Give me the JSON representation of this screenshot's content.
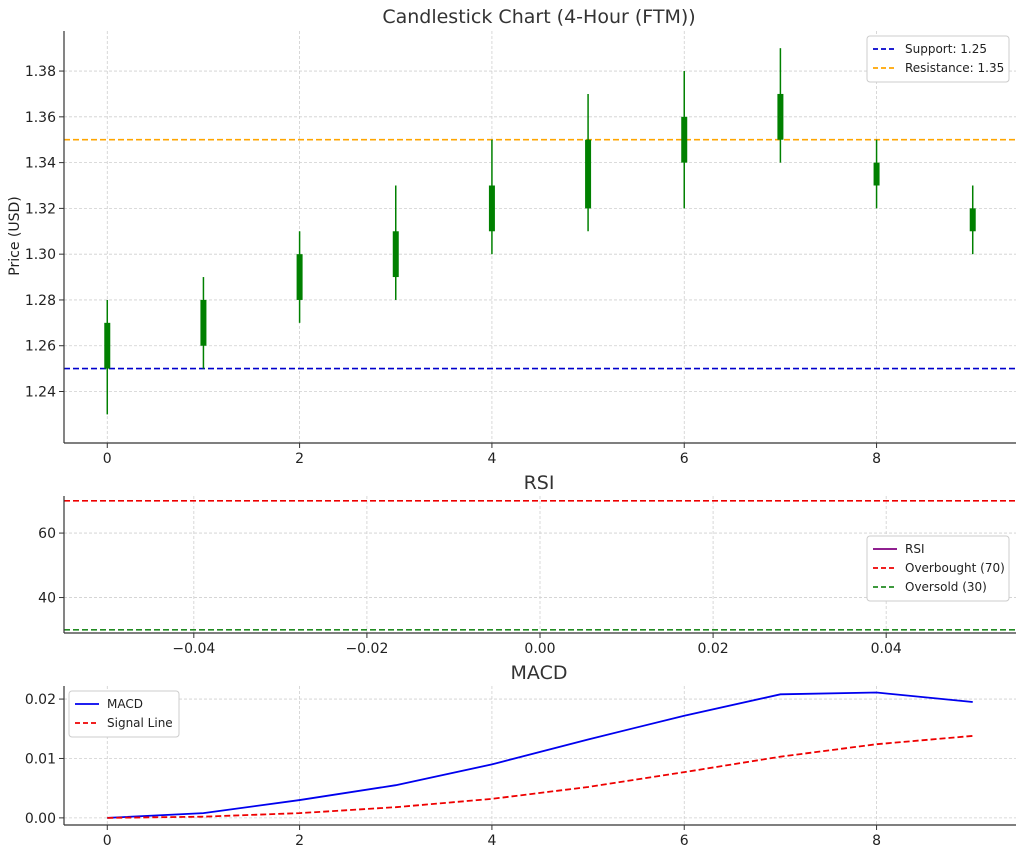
{
  "chart_data": [
    {
      "type": "candlestick",
      "title": "Candlestick Chart (4-Hour (FTM))",
      "ylabel": "Price (USD)",
      "xlabel": "",
      "xlim": [
        -0.45,
        9.45
      ],
      "ylim": [
        1.2175,
        1.3975
      ],
      "xticks": [
        0,
        2,
        4,
        6,
        8
      ],
      "yticks": [
        1.24,
        1.26,
        1.28,
        1.3,
        1.32,
        1.34,
        1.36,
        1.38
      ],
      "grid": true,
      "legend_position": "top-right",
      "candle_color": "#008000",
      "x": [
        0,
        1,
        2,
        3,
        4,
        5,
        6,
        7,
        8,
        9
      ],
      "open": [
        1.25,
        1.26,
        1.28,
        1.29,
        1.31,
        1.32,
        1.34,
        1.35,
        1.33,
        1.31
      ],
      "close": [
        1.27,
        1.28,
        1.3,
        1.31,
        1.33,
        1.35,
        1.36,
        1.37,
        1.34,
        1.32
      ],
      "high": [
        1.28,
        1.29,
        1.31,
        1.33,
        1.35,
        1.37,
        1.38,
        1.39,
        1.35,
        1.33
      ],
      "low": [
        1.23,
        1.25,
        1.27,
        1.28,
        1.3,
        1.31,
        1.32,
        1.34,
        1.32,
        1.3
      ],
      "hlines": [
        {
          "name": "Support: 1.25",
          "value": 1.25,
          "color": "#0000cc"
        },
        {
          "name": "Resistance: 1.35",
          "value": 1.35,
          "color": "#ffa500"
        }
      ]
    },
    {
      "type": "line",
      "title": "RSI",
      "xlim": [
        -0.055,
        0.055
      ],
      "ylim": [
        29,
        71.5
      ],
      "xticks": [
        -0.04,
        -0.02,
        0.0,
        0.02,
        0.04
      ],
      "xtick_labels": [
        "−0.04",
        "−0.02",
        "0.00",
        "0.02",
        "0.04"
      ],
      "yticks": [
        40,
        60
      ],
      "grid": true,
      "legend_position": "center-right",
      "series": [
        {
          "name": "RSI",
          "values": [],
          "color": "#800080",
          "style": "solid"
        }
      ],
      "hlines": [
        {
          "name": "Overbought (70)",
          "value": 70,
          "color": "#ee0000"
        },
        {
          "name": "Oversold (30)",
          "value": 30,
          "color": "#228b22"
        }
      ]
    },
    {
      "type": "line",
      "title": "MACD",
      "xlim": [
        -0.45,
        9.45
      ],
      "ylim": [
        -0.0012,
        0.0222
      ],
      "xticks": [
        0,
        2,
        4,
        6,
        8
      ],
      "yticks": [
        0.0,
        0.01,
        0.02
      ],
      "ytick_labels": [
        "0.00",
        "0.01",
        "0.02"
      ],
      "grid": true,
      "legend_position": "top-left",
      "x": [
        0,
        1,
        2,
        3,
        4,
        5,
        6,
        7,
        8,
        9
      ],
      "series": [
        {
          "name": "MACD",
          "color": "#0000ee",
          "style": "solid",
          "values": [
            0.0,
            0.0008,
            0.003,
            0.0055,
            0.009,
            0.0132,
            0.0172,
            0.0208,
            0.0211,
            0.0195
          ]
        },
        {
          "name": "Signal Line",
          "color": "#ee0000",
          "style": "dashed",
          "values": [
            0.0,
            0.0002,
            0.0008,
            0.0018,
            0.0032,
            0.0052,
            0.0077,
            0.0103,
            0.0124,
            0.0138
          ]
        }
      ]
    }
  ]
}
